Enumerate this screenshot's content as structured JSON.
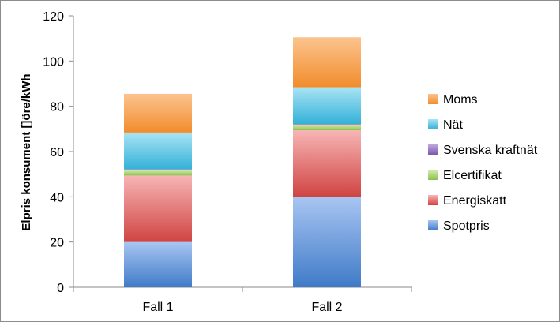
{
  "chart_data": {
    "type": "bar",
    "stacked": true,
    "categories": [
      "Fall 1",
      "Fall 2"
    ],
    "ylabel": "Elpris konsument []öre/kWh",
    "xlabel": "",
    "ylim": [
      0,
      120
    ],
    "yticks": [
      0,
      20,
      40,
      60,
      80,
      100,
      120
    ],
    "grid": false,
    "legend": "right",
    "series": [
      {
        "name": "Spotpris",
        "values": [
          20,
          40
        ],
        "color_top": "#a9c5f2",
        "color_bottom": "#3f7bc8"
      },
      {
        "name": "Energiskatt",
        "values": [
          29.4,
          29.4
        ],
        "color_top": "#f7b5b5",
        "color_bottom": "#cf4442"
      },
      {
        "name": "Elcertifikat",
        "values": [
          2.5,
          2.5
        ],
        "color_top": "#d6ecb0",
        "color_bottom": "#8dc04f"
      },
      {
        "name": "Svenska kraftnät",
        "values": [
          0.3,
          0.3
        ],
        "color_top": "#c1a8e0",
        "color_bottom": "#7a58ad"
      },
      {
        "name": "Nät",
        "values": [
          16.2,
          16.2
        ],
        "color_top": "#a9e4f4",
        "color_bottom": "#33b1d8"
      },
      {
        "name": "Moms",
        "values": [
          17.1,
          22.1
        ],
        "color_top": "#fbc48e",
        "color_bottom": "#f28c2c"
      }
    ]
  }
}
